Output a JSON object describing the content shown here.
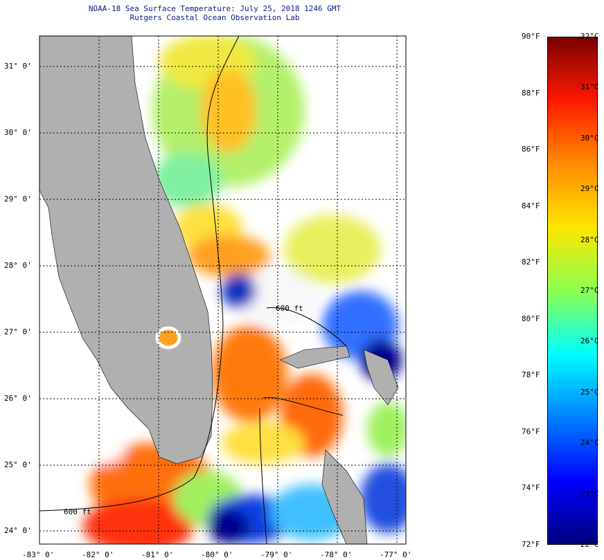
{
  "header": {
    "title": "NOAA-18 Sea Surface Temperature:  July 25, 2018 1246 GMT",
    "subtitle": "Rutgers Coastal Ocean Observation Lab"
  },
  "map": {
    "lat_labels": [
      "31° 0'",
      "30° 0'",
      "29° 0'",
      "28° 0'",
      "27° 0'",
      "26° 0'",
      "25° 0'",
      "24° 0'"
    ],
    "lon_labels": [
      "-83° 0'",
      "-82° 0'",
      "-81° 0'",
      "-80° 0'",
      "-79° 0'",
      "-78° 0'",
      "-77° 0'"
    ],
    "contour_label": "600 ft",
    "land_color": "#b0b0b0"
  },
  "colorbar": {
    "f_labels": [
      "90°F",
      "88°F",
      "86°F",
      "84°F",
      "82°F",
      "80°F",
      "78°F",
      "76°F",
      "74°F",
      "72°F"
    ],
    "c_labels": [
      "32°C",
      "31°C",
      "30°C",
      "29°C",
      "28°C",
      "27°C",
      "26°C",
      "25°C",
      "24°C",
      "23°C",
      "22°C"
    ],
    "colors": [
      "#7a0000",
      "#ff1a00",
      "#ff8c00",
      "#ffe600",
      "#8cff50",
      "#00ffff",
      "#0080ff",
      "#0000ff",
      "#000080"
    ]
  }
}
